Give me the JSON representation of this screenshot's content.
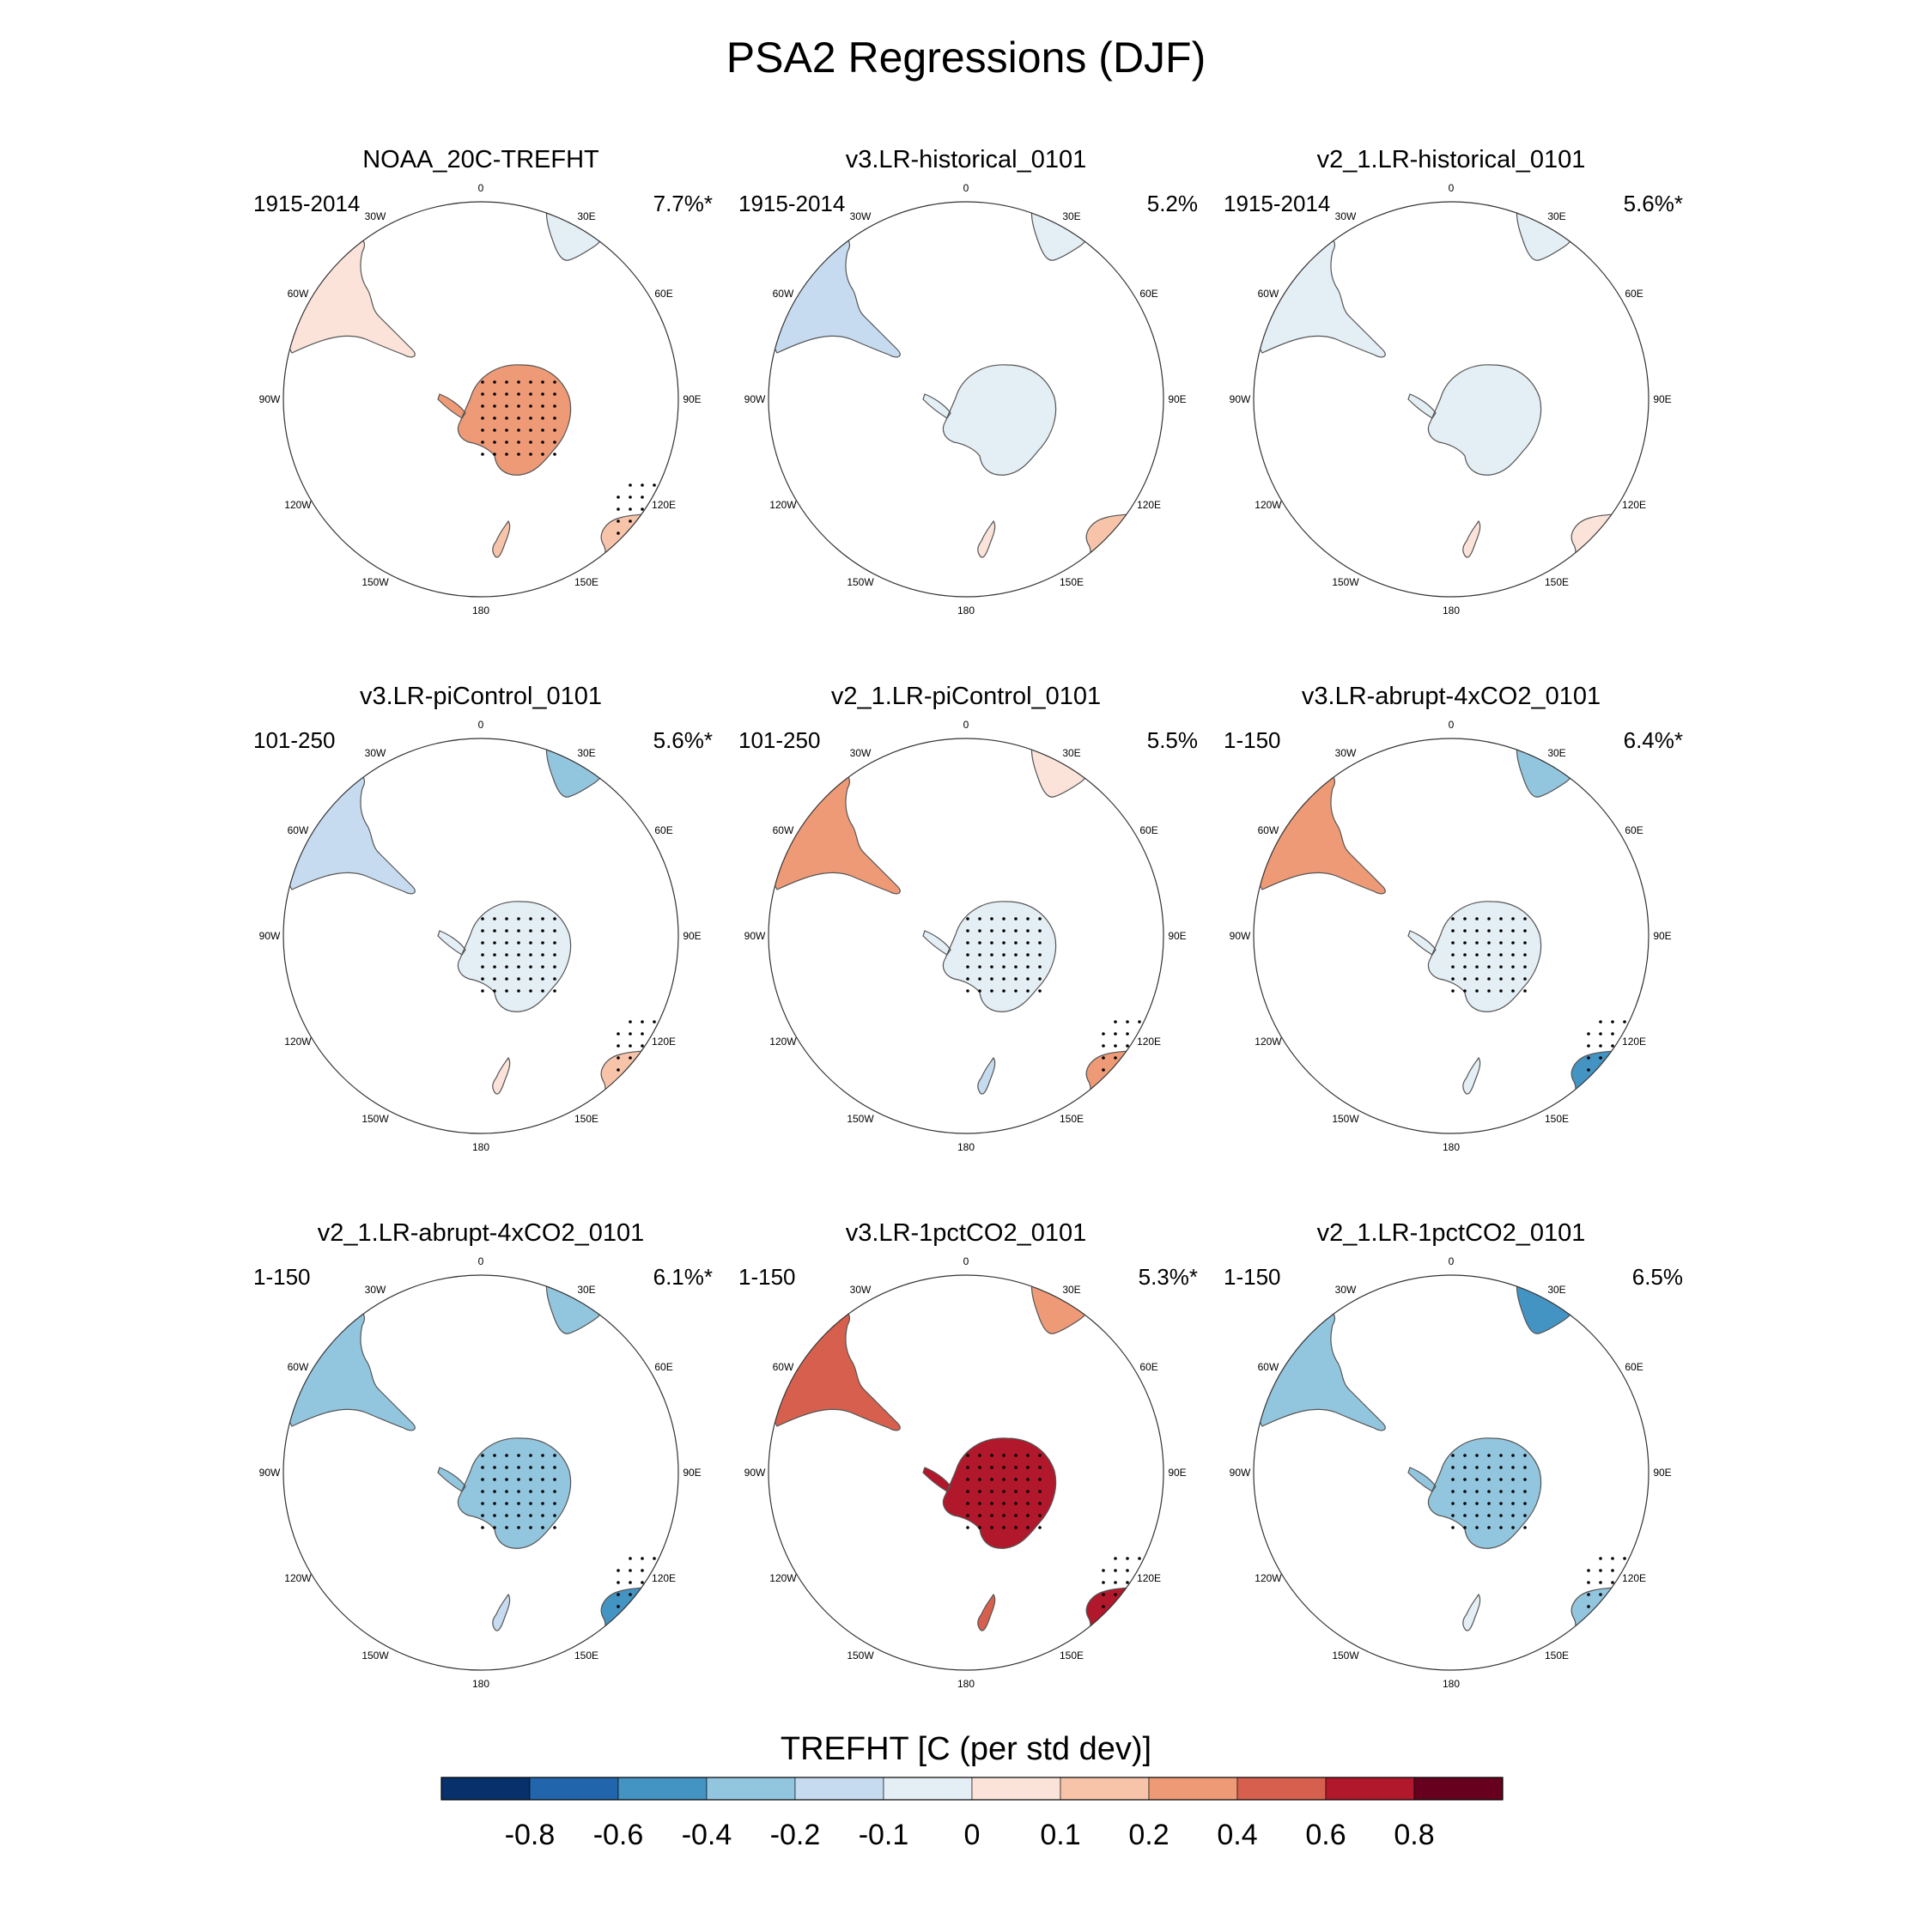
{
  "title": "PSA2 Regressions (DJF)",
  "longitude_labels": [
    "0",
    "30E",
    "60E",
    "90E",
    "120E",
    "150E",
    "180",
    "150W",
    "120W",
    "90W",
    "60W",
    "30W"
  ],
  "colors": {
    "levels": [
      "#08306b",
      "#2166ac",
      "#4393c3",
      "#92c5de",
      "#c6dbef",
      "#e4eef5",
      "#fbe3d9",
      "#f7c4aa",
      "#ee9a76",
      "#d6604d",
      "#b2182b",
      "#67001f"
    ],
    "coast": "#555555",
    "rim": "#333333"
  },
  "chart_data": {
    "type": "map-panels",
    "variable": "TREFHT",
    "projection": "South polar stereographic",
    "panels": [
      {
        "title": "NOAA_20C-TREFHT",
        "period": "1915-2014",
        "variance": "7.7%*",
        "values": {
          "antarctica": 3,
          "south_america": 1,
          "africa": 0,
          "australia": 2,
          "new_zealand": 2,
          "stippled": true
        }
      },
      {
        "title": "v3.LR-historical_0101",
        "period": "1915-2014",
        "variance": "5.2%",
        "values": {
          "antarctica": -1,
          "south_america": -2,
          "africa": -1,
          "australia": 2,
          "new_zealand": 1,
          "stippled": false
        }
      },
      {
        "title": "v2_1.LR-historical_0101",
        "period": "1915-2014",
        "variance": "5.6%*",
        "values": {
          "antarctica": -1,
          "south_america": -1,
          "africa": -1,
          "australia": 1,
          "new_zealand": 1,
          "stippled": false
        }
      },
      {
        "title": "v3.LR-piControl_0101",
        "period": "101-250",
        "variance": "5.6%*",
        "values": {
          "antarctica": -1,
          "south_america": -2,
          "africa": -3,
          "australia": 2,
          "new_zealand": 1,
          "stippled": true
        }
      },
      {
        "title": "v2_1.LR-piControl_0101",
        "period": "101-250",
        "variance": "5.5%",
        "values": {
          "antarctica": -1,
          "south_america": 3,
          "africa": 1,
          "australia": 3,
          "new_zealand": -2,
          "stippled": true
        }
      },
      {
        "title": "v3.LR-abrupt-4xCO2_0101",
        "period": "1-150",
        "variance": "6.4%*",
        "values": {
          "antarctica": -1,
          "south_america": 3,
          "africa": -3,
          "australia": -4,
          "new_zealand": -1,
          "stippled": true
        }
      },
      {
        "title": "v2_1.LR-abrupt-4xCO2_0101",
        "period": "1-150",
        "variance": "6.1%*",
        "values": {
          "antarctica": -3,
          "south_america": -3,
          "africa": -3,
          "australia": -4,
          "new_zealand": -2,
          "stippled": true
        }
      },
      {
        "title": "v3.LR-1pctCO2_0101",
        "period": "1-150",
        "variance": "5.3%*",
        "values": {
          "antarctica": 5,
          "south_america": 4,
          "africa": 3,
          "australia": 5,
          "new_zealand": 4,
          "stippled": true
        }
      },
      {
        "title": "v2_1.LR-1pctCO2_0101",
        "period": "1-150",
        "variance": "6.5%",
        "values": {
          "antarctica": -3,
          "south_america": -3,
          "africa": -4,
          "australia": -3,
          "new_zealand": -1,
          "stippled": true
        }
      }
    ],
    "colorbar": {
      "title": "TREFHT [C (per std dev)]",
      "ticks": [
        "-0.8",
        "-0.6",
        "-0.4",
        "-0.2",
        "-0.1",
        "0",
        "0.1",
        "0.2",
        "0.4",
        "0.6",
        "0.8"
      ]
    }
  }
}
